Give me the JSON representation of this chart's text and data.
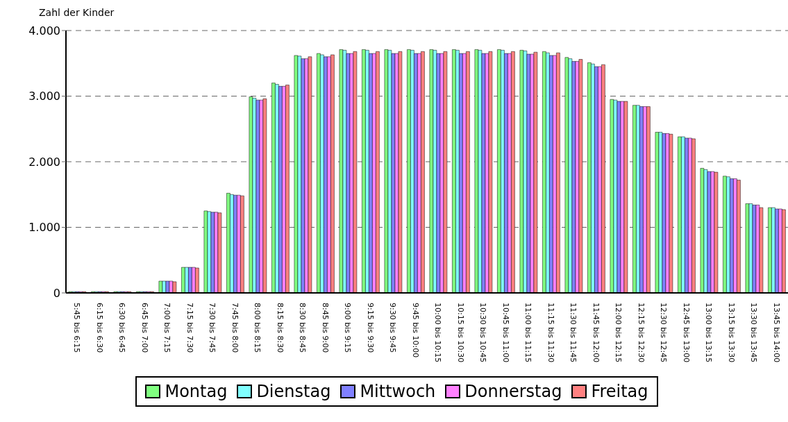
{
  "chart_data": {
    "type": "bar",
    "ylabel": "Zahl der Kinder",
    "categories": [
      "5:45 bis 6:15",
      "6:15 bis 6:30",
      "6:30 bis 6:45",
      "6:45 bis 7:00",
      "7:00 bis 7:15",
      "7:15 bis 7:30",
      "7:30 bis 7:45",
      "7:45 bis 8:00",
      "8:00 bis 8:15",
      "8:15 bis 8:30",
      "8:30 bis 8:45",
      "8:45 bis 9:00",
      "9:00 bis 9:15",
      "9:15 bis 9:30",
      "9:30 bis 9:45",
      "9:45 bis 10:00",
      "10:00 bis 10:15",
      "10:15 bis 10:30",
      "10:30 bis 10:45",
      "10:45 bis 11:00",
      "11:00 bis 11:15",
      "11:15 bis 11:30",
      "11:30 bis 11:45",
      "11:45 bis 12:00",
      "12:00 bis 12:15",
      "12:15 bis 12:30",
      "12:30 bis 12:45",
      "12:45 bis 13:00",
      "13:00 bis 13:15",
      "13:15 bis 13:30",
      "13:30 bis 13:45",
      "13:45 bis 14:00"
    ],
    "series": [
      {
        "name": "Montag",
        "color": "#80ff80",
        "values": [
          20,
          20,
          20,
          20,
          180,
          390,
          1250,
          1520,
          2990,
          3200,
          3620,
          3650,
          3710,
          3710,
          3710,
          3710,
          3710,
          3710,
          3710,
          3710,
          3700,
          3680,
          3590,
          3510,
          2950,
          2860,
          2450,
          2380,
          1900,
          1780,
          1360,
          1300
        ]
      },
      {
        "name": "Dienstag",
        "color": "#80ffff",
        "values": [
          20,
          20,
          20,
          20,
          180,
          390,
          1240,
          1500,
          2970,
          3180,
          3610,
          3630,
          3700,
          3700,
          3700,
          3700,
          3700,
          3700,
          3700,
          3700,
          3690,
          3660,
          3570,
          3490,
          2940,
          2860,
          2450,
          2380,
          1880,
          1770,
          1360,
          1300
        ]
      },
      {
        "name": "Mittwoch",
        "color": "#8080ff",
        "values": [
          20,
          20,
          20,
          20,
          180,
          390,
          1230,
          1490,
          2940,
          3150,
          3570,
          3600,
          3650,
          3650,
          3650,
          3650,
          3650,
          3650,
          3650,
          3650,
          3640,
          3620,
          3530,
          3450,
          2920,
          2840,
          2430,
          2360,
          1850,
          1740,
          1340,
          1280
        ]
      },
      {
        "name": "Donnerstag",
        "color": "#ff80ff",
        "values": [
          20,
          20,
          20,
          20,
          180,
          390,
          1230,
          1490,
          2940,
          3150,
          3570,
          3600,
          3650,
          3650,
          3650,
          3650,
          3650,
          3650,
          3650,
          3650,
          3640,
          3620,
          3530,
          3450,
          2920,
          2840,
          2430,
          2360,
          1850,
          1740,
          1340,
          1280
        ]
      },
      {
        "name": "Freitag",
        "color": "#ff8080",
        "values": [
          20,
          20,
          20,
          20,
          170,
          380,
          1220,
          1480,
          2960,
          3170,
          3600,
          3630,
          3680,
          3680,
          3680,
          3680,
          3680,
          3680,
          3680,
          3680,
          3670,
          3660,
          3560,
          3480,
          2920,
          2840,
          2420,
          2350,
          1840,
          1720,
          1300,
          1270
        ]
      }
    ],
    "ylim": [
      0,
      4000
    ],
    "yticks": [
      {
        "value": 0,
        "label": "0"
      },
      {
        "value": 1000,
        "label": "1.000"
      },
      {
        "value": 2000,
        "label": "2.000"
      },
      {
        "value": 3000,
        "label": "3.000"
      },
      {
        "value": 4000,
        "label": "4.000"
      }
    ],
    "grid": "y",
    "legend": "bottom"
  }
}
